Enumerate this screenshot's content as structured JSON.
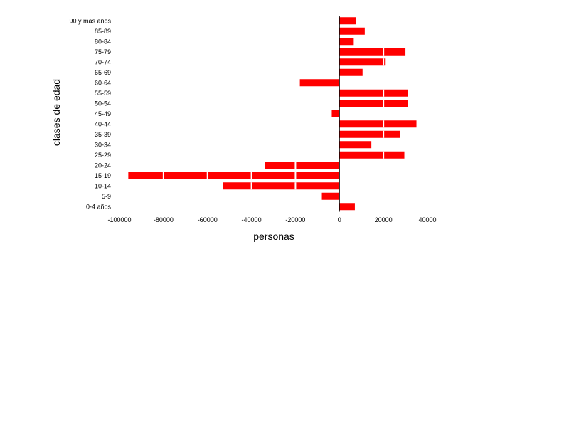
{
  "chart_data": {
    "type": "bar",
    "orientation": "horizontal",
    "xlabel": "personas",
    "ylabel": "clases de edad",
    "xlim": [
      -100000,
      40000
    ],
    "x_ticks": [
      "-100000",
      "-80000",
      "-60000",
      "-40000",
      "-20000",
      "0",
      "20000",
      "40000"
    ],
    "x_gridline_dividers_on_bars": true,
    "grid": false,
    "legend": "none",
    "bar_color": "#ff0000",
    "categories": [
      "0-4 años",
      "5-9",
      "10-14",
      "15-19",
      "20-24",
      "25-29",
      "30-34",
      "35-39",
      "40-44",
      "45-49",
      "50-54",
      "55-59",
      "60-64",
      "65-69",
      "70-74",
      "75-79",
      "80-84",
      "85-89",
      "90 y más años"
    ],
    "values": [
      7000,
      -8000,
      -53000,
      -96000,
      -34000,
      29500,
      14500,
      27500,
      35000,
      -3500,
      31000,
      31000,
      -18000,
      10500,
      21000,
      30000,
      6500,
      11500,
      7500
    ]
  }
}
